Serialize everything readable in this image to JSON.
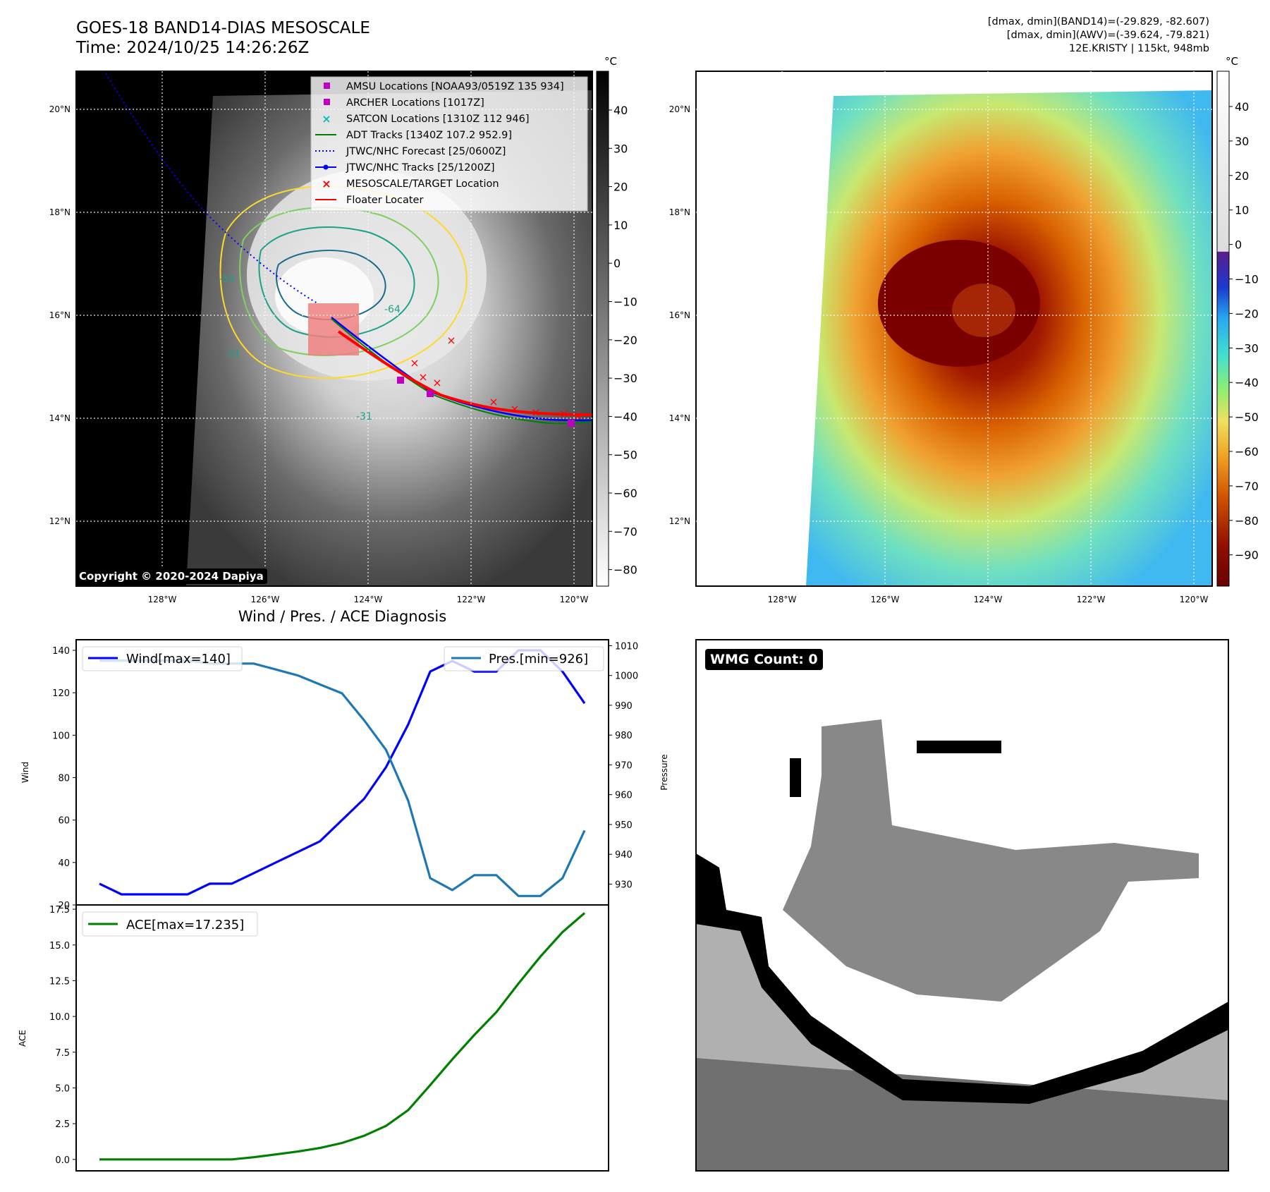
{
  "header": {
    "title_line1": "GOES-18 BAND14-DIAS MESOSCALE",
    "title_line2": "Time: 2024/10/25 14:26:26Z",
    "info_line1": "[dmax, dmin](BAND14)=(-29.829, -82.607)",
    "info_line2": "[dmax, dmin](AWV)=(-39.624, -79.821)",
    "info_line3": "12E.KRISTY | 115kt, 948mb",
    "copyright": "Copyright © 2020-2024 Dapiya"
  },
  "map": {
    "lat_labels": [
      "20°N",
      "18°N",
      "16°N",
      "14°N",
      "12°N"
    ],
    "lon_labels": [
      "128°W",
      "126°W",
      "124°W",
      "122°W",
      "120°W"
    ],
    "contour_labels": [
      "-54",
      "-64",
      "-31",
      "-31"
    ],
    "legend": [
      {
        "label": "AMSU Locations [NOAA93/0519Z 135 934]",
        "marker": "square",
        "color": "#c000c0"
      },
      {
        "label": "ARCHER Locations [1017Z]",
        "marker": "square",
        "color": "#c000c0"
      },
      {
        "label": "SATCON Locations [1310Z 112 946]",
        "marker": "x",
        "color": "#00bfbf"
      },
      {
        "label": "ADT Tracks [1340Z 107.2 952.9]",
        "marker": "line",
        "color": "#008000"
      },
      {
        "label": "JTWC/NHC Forecast [25/0600Z]",
        "marker": "dotted",
        "color": "#0000ff"
      },
      {
        "label": "JTWC/NHC Tracks [25/1200Z]",
        "marker": "line-dot",
        "color": "#0000ff"
      },
      {
        "label": "MESOSCALE/TARGET Location",
        "marker": "x",
        "color": "#ff0000"
      },
      {
        "label": "Floater Locater",
        "marker": "line",
        "color": "#ff0000"
      }
    ]
  },
  "colorbars": {
    "unit": "°C",
    "gray_ticks": [
      "40",
      "30",
      "20",
      "10",
      "0",
      "−10",
      "−20",
      "−30",
      "−40",
      "−50",
      "−60",
      "−70",
      "−80"
    ],
    "color_ticks": [
      "40",
      "30",
      "20",
      "10",
      "0",
      "−10",
      "−20",
      "−30",
      "−40",
      "−50",
      "−60",
      "−70",
      "−80",
      "−90"
    ]
  },
  "wmg": {
    "label": "WMG Count: 0"
  },
  "chart_data": [
    {
      "type": "line",
      "title": "Wind / Pres. / ACE Diagnosis",
      "ylabel": "Wind",
      "ylim": [
        20,
        145
      ],
      "yticks": [
        "20",
        "40",
        "60",
        "80",
        "100",
        "120",
        "140"
      ],
      "series": [
        {
          "name": "Wind[max=140]",
          "color": "#0000ff",
          "values": [
            30,
            25,
            25,
            25,
            25,
            30,
            30,
            35,
            40,
            45,
            50,
            60,
            70,
            85,
            105,
            130,
            135,
            130,
            130,
            140,
            140,
            130,
            115
          ]
        }
      ]
    },
    {
      "type": "line",
      "ylabel": "Pressure",
      "ylim": [
        923,
        1012
      ],
      "yticks": [
        "930",
        "940",
        "950",
        "960",
        "970",
        "980",
        "990",
        "1000",
        "1010"
      ],
      "series": [
        {
          "name": "Pres.[min=926]",
          "color": "#1f77b4",
          "values": [
            1005,
            1005,
            1005,
            1005,
            1005,
            1004,
            1004,
            1004,
            1002,
            1000,
            997,
            994,
            985,
            975,
            958,
            932,
            928,
            933,
            933,
            926,
            926,
            932,
            948
          ]
        }
      ]
    },
    {
      "type": "line",
      "ylabel": "ACE",
      "ylim": [
        -0.8,
        17.8
      ],
      "yticks": [
        "0.0",
        "2.5",
        "5.0",
        "7.5",
        "10.0",
        "12.5",
        "15.0",
        "17.5"
      ],
      "series": [
        {
          "name": "ACE[max=17.235]",
          "color": "#008000",
          "values": [
            0,
            0,
            0,
            0,
            0,
            0,
            0,
            0.15,
            0.35,
            0.55,
            0.8,
            1.15,
            1.65,
            2.35,
            3.45,
            5.2,
            7.0,
            8.7,
            10.3,
            12.3,
            14.2,
            15.9,
            17.235
          ]
        }
      ]
    }
  ]
}
